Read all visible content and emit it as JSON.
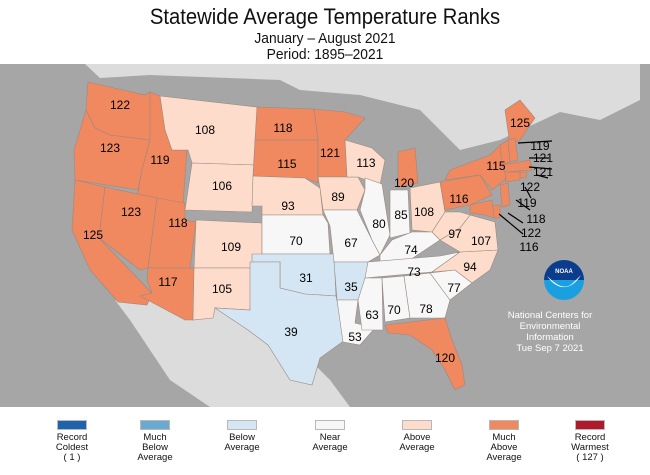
{
  "title": "Statewide Average Temperature Ranks",
  "subtitle": "January – August 2021",
  "period": "Period: 1895–2021",
  "colors": {
    "record_coldest": "#1f63ad",
    "much_below": "#6aa9d2",
    "below": "#d4e6f3",
    "near": "#f7f7f7",
    "above": "#fddccb",
    "much_above": "#f08860",
    "record_warmest": "#b0182c",
    "ocean": "#a6a6a6",
    "land_other": "#dcdcdc"
  },
  "credit": {
    "logo": "NOAA",
    "line1": "National Centers for",
    "line2": "Environmental",
    "line3": "Information",
    "date": "Tue Sep  7 2021"
  },
  "chart_data": {
    "type": "choropleth",
    "title": "Statewide Average Temperature Ranks",
    "subtitle": "January – August 2021",
    "period": "1895–2021",
    "max_rank": 127,
    "states": [
      {
        "state": "WA",
        "rank": 122,
        "category": "much_above"
      },
      {
        "state": "OR",
        "rank": 123,
        "category": "much_above"
      },
      {
        "state": "CA",
        "rank": 125,
        "category": "much_above"
      },
      {
        "state": "ID",
        "rank": 119,
        "category": "much_above"
      },
      {
        "state": "NV",
        "rank": 123,
        "category": "much_above"
      },
      {
        "state": "UT",
        "rank": 118,
        "category": "much_above"
      },
      {
        "state": "AZ",
        "rank": 117,
        "category": "much_above"
      },
      {
        "state": "MT",
        "rank": 108,
        "category": "above"
      },
      {
        "state": "WY",
        "rank": 106,
        "category": "above"
      },
      {
        "state": "CO",
        "rank": 109,
        "category": "above"
      },
      {
        "state": "NM",
        "rank": 105,
        "category": "above"
      },
      {
        "state": "ND",
        "rank": 118,
        "category": "much_above"
      },
      {
        "state": "SD",
        "rank": 115,
        "category": "much_above"
      },
      {
        "state": "NE",
        "rank": 93,
        "category": "above"
      },
      {
        "state": "KS",
        "rank": 70,
        "category": "near"
      },
      {
        "state": "OK",
        "rank": 31,
        "category": "below"
      },
      {
        "state": "TX",
        "rank": 39,
        "category": "below"
      },
      {
        "state": "MN",
        "rank": 121,
        "category": "much_above"
      },
      {
        "state": "IA",
        "rank": 89,
        "category": "above"
      },
      {
        "state": "MO",
        "rank": 67,
        "category": "near"
      },
      {
        "state": "AR",
        "rank": 35,
        "category": "below"
      },
      {
        "state": "LA",
        "rank": 53,
        "category": "near"
      },
      {
        "state": "WI",
        "rank": 113,
        "category": "above"
      },
      {
        "state": "IL",
        "rank": 80,
        "category": "near"
      },
      {
        "state": "MI",
        "rank": 120,
        "category": "much_above"
      },
      {
        "state": "IN",
        "rank": 85,
        "category": "near"
      },
      {
        "state": "OH",
        "rank": 108,
        "category": "above"
      },
      {
        "state": "KY",
        "rank": 74,
        "category": "near"
      },
      {
        "state": "TN",
        "rank": 73,
        "category": "near"
      },
      {
        "state": "MS",
        "rank": 63,
        "category": "near"
      },
      {
        "state": "AL",
        "rank": 70,
        "category": "near"
      },
      {
        "state": "GA",
        "rank": 78,
        "category": "near"
      },
      {
        "state": "FL",
        "rank": 120,
        "category": "much_above"
      },
      {
        "state": "SC",
        "rank": 77,
        "category": "near"
      },
      {
        "state": "NC",
        "rank": 94,
        "category": "above"
      },
      {
        "state": "VA",
        "rank": 107,
        "category": "above"
      },
      {
        "state": "WV",
        "rank": 97,
        "category": "above"
      },
      {
        "state": "PA",
        "rank": 116,
        "category": "much_above"
      },
      {
        "state": "NY",
        "rank": 115,
        "category": "much_above"
      },
      {
        "state": "ME",
        "rank": 125,
        "category": "much_above"
      },
      {
        "state": "VT",
        "rank": 119,
        "category": "much_above"
      },
      {
        "state": "NH",
        "rank": 121,
        "category": "much_above"
      },
      {
        "state": "MA",
        "rank": 121,
        "category": "much_above"
      },
      {
        "state": "RI",
        "rank": 122,
        "category": "much_above"
      },
      {
        "state": "CT",
        "rank": 119,
        "category": "much_above"
      },
      {
        "state": "NJ",
        "rank": 118,
        "category": "much_above"
      },
      {
        "state": "DE",
        "rank": 122,
        "category": "much_above"
      },
      {
        "state": "MD",
        "rank": 116,
        "category": "much_above"
      }
    ]
  },
  "legend": [
    {
      "key": "record_coldest",
      "lines": [
        "Record",
        "Coldest",
        "( 1 )"
      ]
    },
    {
      "key": "much_below",
      "lines": [
        "Much",
        "Below",
        "Average"
      ]
    },
    {
      "key": "below",
      "lines": [
        "Below",
        "Average"
      ]
    },
    {
      "key": "near",
      "lines": [
        "Near",
        "Average"
      ]
    },
    {
      "key": "above",
      "lines": [
        "Above",
        "Average"
      ]
    },
    {
      "key": "much_above",
      "lines": [
        "Much",
        "Above",
        "Average"
      ]
    },
    {
      "key": "record_warmest",
      "lines": [
        "Record",
        "Warmest",
        "( 127 )"
      ]
    }
  ]
}
